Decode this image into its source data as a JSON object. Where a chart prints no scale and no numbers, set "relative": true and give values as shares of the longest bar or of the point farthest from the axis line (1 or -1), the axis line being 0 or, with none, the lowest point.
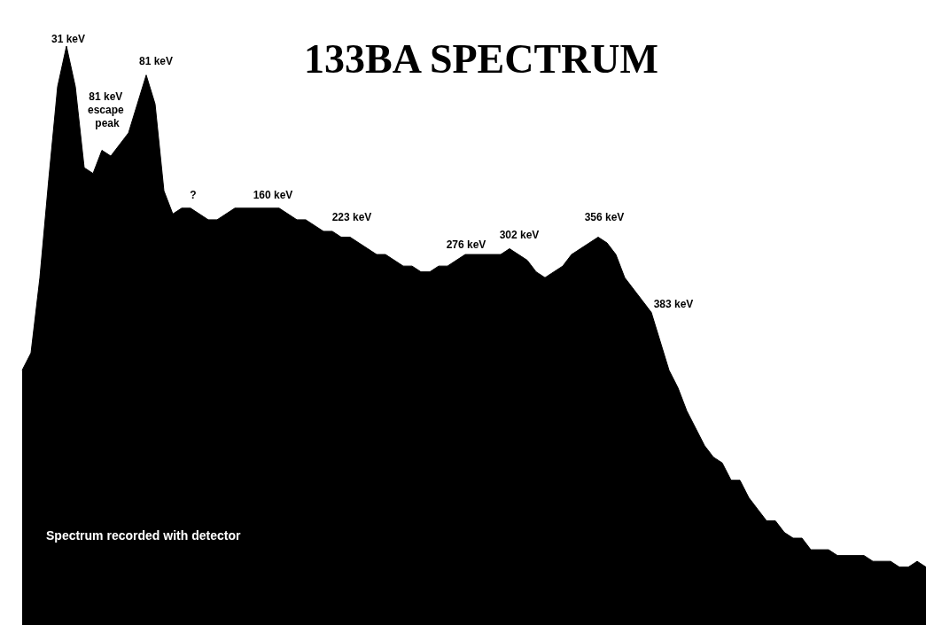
{
  "chart_data": {
    "type": "area",
    "title": "133BA SPECTRUM",
    "relative": true,
    "color": "#000000",
    "annotations": [
      "31 keV",
      "81 keV escape peak",
      "81 keV",
      "?",
      "160 keV",
      "223 keV",
      "276 keV",
      "302 keV",
      "356 keV",
      "383 keV",
      "Spectrum recorded with detector"
    ],
    "categories": [
      null,
      null,
      null,
      null,
      null,
      null,
      null,
      null,
      null,
      null,
      null,
      null,
      null,
      null,
      null,
      null,
      null,
      null,
      null,
      null,
      null,
      null,
      null,
      null,
      null,
      null,
      null,
      null,
      null,
      null,
      null,
      null,
      null,
      null,
      null,
      null,
      null,
      null,
      null,
      null,
      null,
      null,
      null,
      null,
      null,
      null,
      null,
      null,
      null,
      null,
      null,
      null,
      null,
      null,
      null,
      null,
      null,
      null,
      null,
      null,
      null,
      null,
      null,
      null,
      null,
      null,
      null,
      null,
      null,
      null,
      null,
      null,
      null,
      null,
      null,
      null,
      null,
      null,
      null,
      null,
      null,
      null,
      null,
      null,
      null,
      null,
      null,
      null,
      null,
      null,
      null,
      null,
      null,
      null,
      null,
      null,
      null,
      null,
      null,
      null,
      null,
      null,
      null
    ],
    "values": [
      0.44,
      0.47,
      0.6,
      0.77,
      0.93,
      1,
      0.93,
      0.79,
      0.78,
      0.82,
      0.81,
      0.83,
      0.85,
      0.9,
      0.95,
      0.9,
      0.75,
      0.71,
      0.72,
      0.72,
      0.71,
      0.7,
      0.7,
      0.71,
      0.72,
      0.72,
      0.72,
      0.72,
      0.72,
      0.72,
      0.71,
      0.7,
      0.7,
      0.69,
      0.68,
      0.68,
      0.67,
      0.67,
      0.66,
      0.65,
      0.64,
      0.64,
      0.63,
      0.62,
      0.62,
      0.61,
      0.61,
      0.62,
      0.62,
      0.63,
      0.64,
      0.64,
      0.64,
      0.64,
      0.64,
      0.65,
      0.64,
      0.63,
      0.61,
      0.6,
      0.61,
      0.62,
      0.64,
      0.65,
      0.66,
      0.67,
      0.66,
      0.64,
      0.6,
      0.58,
      0.56,
      0.54,
      0.49,
      0.44,
      0.41,
      0.37,
      0.34,
      0.31,
      0.29,
      0.28,
      0.25,
      0.25,
      0.22,
      0.2,
      0.18,
      0.18,
      0.16,
      0.15,
      0.15,
      0.13,
      0.13,
      0.13,
      0.12,
      0.12,
      0.12,
      0.12,
      0.11,
      0.11,
      0.11,
      0.1,
      0.1,
      0.11,
      0.1
    ]
  }
}
